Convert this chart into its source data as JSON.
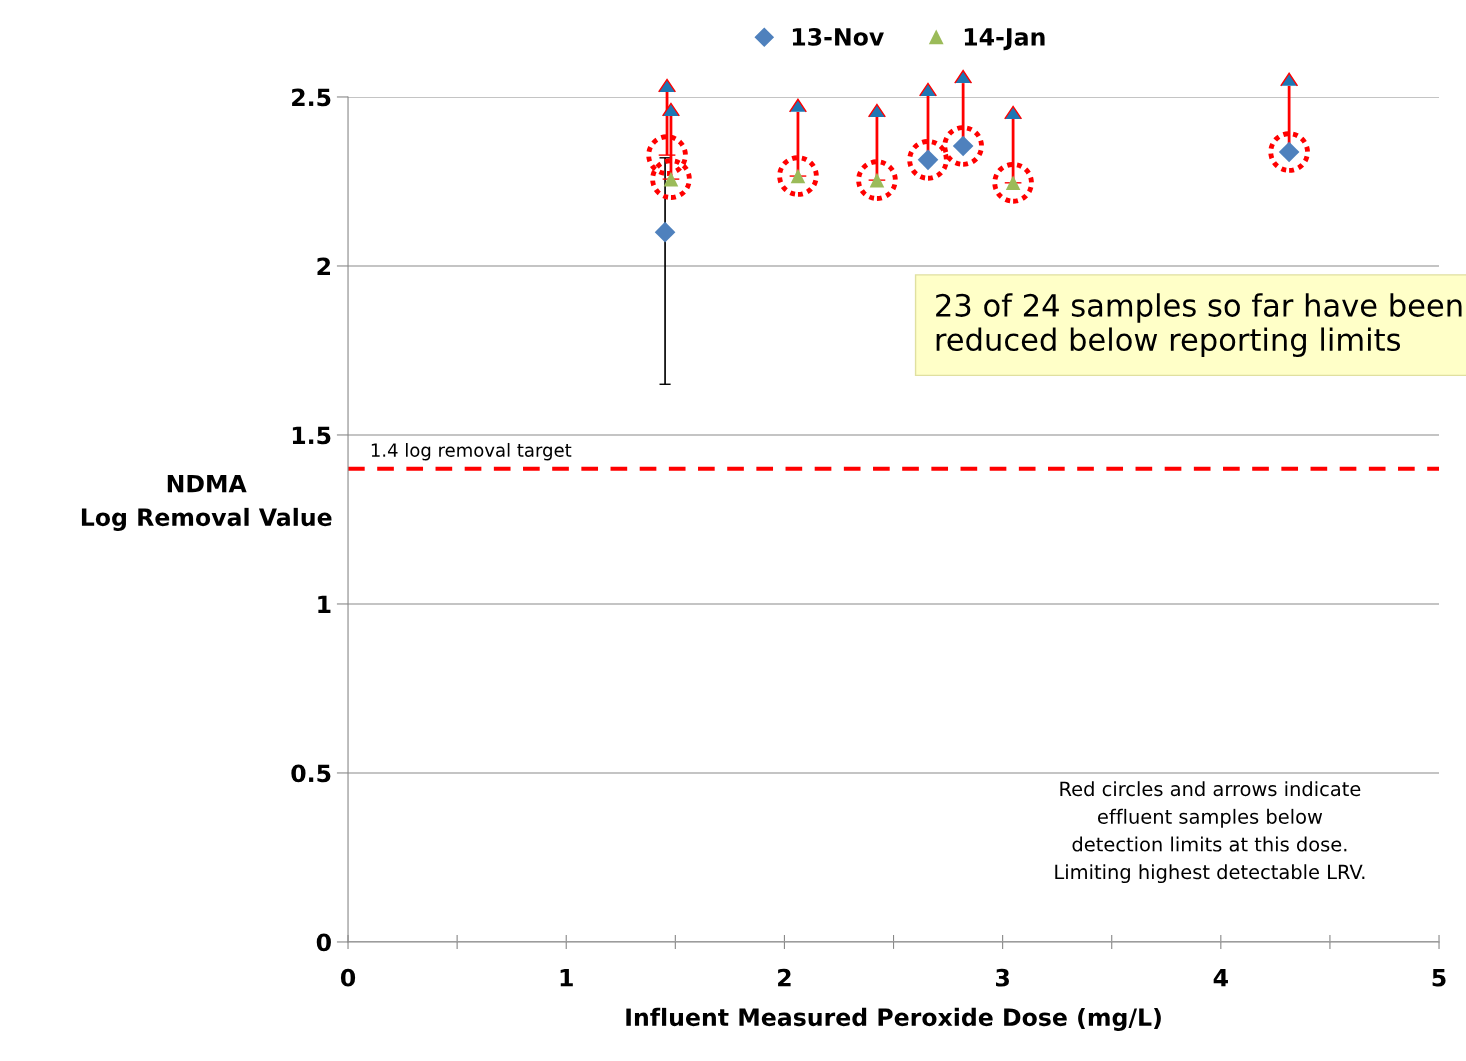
{
  "chart_data": {
    "type": "scatter",
    "xlabel": "Influent Measured Peroxide Dose (mg/L)",
    "ylabel": "NDMA\nLog Removal Value",
    "xlim": [
      0,
      5
    ],
    "xticks": [
      0,
      {
        "value": 0.5,
        "label": null
      },
      1,
      {
        "value": 1.5,
        "label": null
      },
      2,
      {
        "value": 2.5,
        "label": null
      },
      3,
      {
        "value": 3.5,
        "label": null
      },
      4,
      {
        "value": 4.5,
        "label": null
      },
      5
    ],
    "ylim": [
      0,
      2.5
    ],
    "yticks": [
      0,
      0.5,
      1,
      1.5,
      2,
      2.5
    ],
    "grid": "y",
    "legend": "top",
    "series": [
      {
        "name": "13-Nov",
        "color": "#4f81bd",
        "marker": "diamond",
        "x": [
          1.453,
          2.658,
          2.819,
          4.313
        ],
        "values": [
          2.1,
          2.314,
          2.355,
          2.337
        ],
        "errors": [
          [
            1.65,
            2.32
          ],
          null,
          null,
          null
        ]
      },
      {
        "name": "14-Jan",
        "color": "#9bbb59",
        "marker": "triangle",
        "x": [
          1.48,
          2.062,
          2.424,
          3.048
        ],
        "values": [
          2.257,
          2.266,
          2.254,
          2.246
        ]
      },
      {
        "color": "#ff0000",
        "marker": "circle",
        "line_style": "dotted",
        "x": [
          1.462,
          1.48,
          2.062,
          2.424,
          2.658,
          2.819,
          3.048,
          4.313
        ],
        "values": [
          2.328,
          2.257,
          2.266,
          2.254,
          2.314,
          2.355,
          2.246,
          2.337
        ],
        "errors": [
          [
            2.328,
            2.515
          ],
          [
            2.257,
            2.444
          ],
          [
            2.266,
            2.456
          ],
          [
            2.254,
            2.441
          ],
          [
            2.314,
            2.503
          ],
          [
            2.355,
            2.541
          ],
          [
            2.246,
            2.435
          ],
          [
            2.337,
            2.533
          ]
        ]
      }
    ],
    "ref_lines": [
      {
        "axis": "y",
        "value": 1.4,
        "label": "1.4 log removal target",
        "color": "#ff0000",
        "line_style": "dashed"
      }
    ],
    "annotations": [
      "23 of 24 samples so far have been\nreduced below reporting limits",
      "Red circles and arrows indicate\neffluent samples below\ndetection limits at this dose.\nLimiting highest detectable LRV."
    ]
  }
}
